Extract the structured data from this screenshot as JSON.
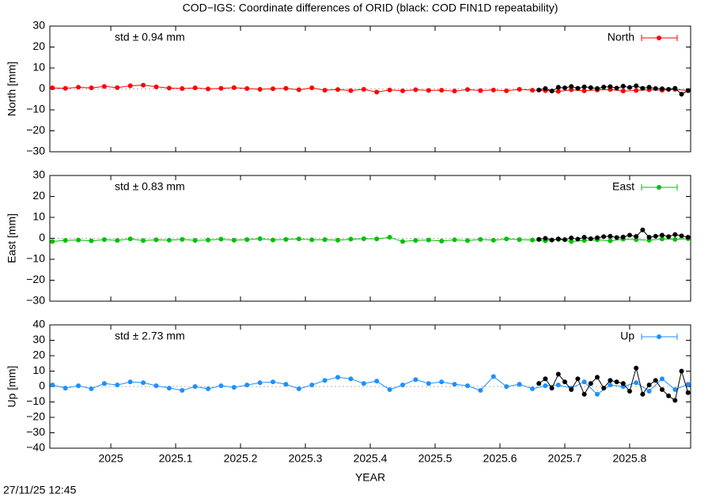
{
  "title": "COD−IGS: Coordinate differences of ORID (black: COD FIN1D repeatability)",
  "timestamp": "27/11/25 12:45",
  "chart_data": [
    {
      "type": "line",
      "ylabel": "North [mm]",
      "annotation": "std ± 0.94 mm",
      "xlim": [
        2024.906,
        2025.894
      ],
      "xticks": [
        2025,
        2025.1,
        2025.2,
        2025.3,
        2025.4,
        2025.5,
        2025.6,
        2025.7,
        2025.8
      ],
      "ylim": [
        -30,
        30
      ],
      "yticks": [
        {
          "value": -30,
          "label": "−30"
        },
        {
          "value": -20,
          "label": "−20"
        },
        {
          "value": -10,
          "label": "−10"
        },
        0,
        10,
        20,
        30
      ],
      "series": [
        {
          "name": "North",
          "color": "#ff0000",
          "x": [
            2024.91,
            2024.93,
            2024.95,
            2024.97,
            2024.99,
            2025.01,
            2025.03,
            2025.05,
            2025.07,
            2025.09,
            2025.11,
            2025.13,
            2025.15,
            2025.17,
            2025.19,
            2025.21,
            2025.23,
            2025.25,
            2025.27,
            2025.29,
            2025.31,
            2025.33,
            2025.35,
            2025.37,
            2025.39,
            2025.41,
            2025.43,
            2025.45,
            2025.47,
            2025.49,
            2025.51,
            2025.53,
            2025.55,
            2025.57,
            2025.59,
            2025.61,
            2025.63,
            2025.65,
            2025.67,
            2025.69,
            2025.71,
            2025.73,
            2025.75,
            2025.77,
            2025.79,
            2025.81,
            2025.83,
            2025.85,
            2025.87,
            2025.89
          ],
          "values": [
            0.5,
            0.3,
            0.8,
            0.5,
            1.2,
            0.6,
            1.5,
            1.8,
            1.0,
            0.4,
            0.2,
            0.5,
            0.0,
            0.3,
            0.6,
            0.2,
            -0.2,
            0.1,
            0.3,
            -0.4,
            0.5,
            -0.6,
            -0.3,
            -0.8,
            -0.2,
            -1.5,
            -0.5,
            -0.9,
            -0.4,
            -0.7,
            -0.6,
            -1.0,
            -0.3,
            -0.8,
            -0.5,
            -0.9,
            -0.2,
            -0.6,
            -0.8,
            -1.2,
            -0.4,
            -0.9,
            -0.5,
            -0.3,
            -1.0,
            -0.7,
            -0.4,
            -0.6,
            -0.2,
            -0.8
          ]
        },
        {
          "color": "#000000",
          "x": [
            2025.66,
            2025.67,
            2025.68,
            2025.69,
            2025.7,
            2025.71,
            2025.72,
            2025.73,
            2025.74,
            2025.75,
            2025.76,
            2025.77,
            2025.78,
            2025.79,
            2025.8,
            2025.81,
            2025.82,
            2025.83,
            2025.84,
            2025.85,
            2025.86,
            2025.87,
            2025.88,
            2025.89
          ],
          "values": [
            -0.5,
            0.2,
            -1.0,
            0.8,
            0.5,
            1.2,
            0.3,
            1.0,
            0.6,
            0.2,
            0.9,
            1.1,
            0.4,
            1.3,
            0.7,
            1.5,
            0.3,
            0.8,
            0.2,
            0.1,
            -0.2,
            0.3,
            -2.5,
            -0.8
          ]
        }
      ]
    },
    {
      "type": "line",
      "ylabel": "East [mm]",
      "annotation": "std ± 0.83 mm",
      "xlim": [
        2024.906,
        2025.894
      ],
      "xticks": [
        2025,
        2025.1,
        2025.2,
        2025.3,
        2025.4,
        2025.5,
        2025.6,
        2025.7,
        2025.8
      ],
      "ylim": [
        -30,
        30
      ],
      "yticks": [
        {
          "value": -30,
          "label": "−30"
        },
        {
          "value": -20,
          "label": "−20"
        },
        {
          "value": -10,
          "label": "−10"
        },
        0,
        10,
        20,
        30
      ],
      "series": [
        {
          "name": "East",
          "color": "#00c000",
          "x": [
            2024.91,
            2024.93,
            2024.95,
            2024.97,
            2024.99,
            2025.01,
            2025.03,
            2025.05,
            2025.07,
            2025.09,
            2025.11,
            2025.13,
            2025.15,
            2025.17,
            2025.19,
            2025.21,
            2025.23,
            2025.25,
            2025.27,
            2025.29,
            2025.31,
            2025.33,
            2025.35,
            2025.37,
            2025.39,
            2025.41,
            2025.43,
            2025.45,
            2025.47,
            2025.49,
            2025.51,
            2025.53,
            2025.55,
            2025.57,
            2025.59,
            2025.61,
            2025.63,
            2025.65,
            2025.67,
            2025.69,
            2025.71,
            2025.73,
            2025.75,
            2025.77,
            2025.79,
            2025.81,
            2025.83,
            2025.85,
            2025.87,
            2025.89
          ],
          "values": [
            -1.5,
            -1.0,
            -0.8,
            -1.2,
            -0.6,
            -1.0,
            -0.3,
            -1.1,
            -0.7,
            -0.9,
            -0.5,
            -1.0,
            -0.8,
            -0.4,
            -0.9,
            -0.6,
            -0.2,
            -0.8,
            -0.5,
            -0.3,
            -0.7,
            -0.6,
            -0.9,
            -0.4,
            -0.2,
            -0.3,
            0.5,
            -1.5,
            -1.0,
            -0.8,
            -1.3,
            -0.7,
            -1.1,
            -0.5,
            -0.9,
            -0.3,
            -0.6,
            -0.8,
            -1.2,
            -0.5,
            -1.5,
            -1.0,
            -0.7,
            -1.2,
            -0.4,
            -0.6,
            -0.9,
            -0.3,
            -0.5,
            -0.2
          ]
        },
        {
          "color": "#000000",
          "x": [
            2025.66,
            2025.67,
            2025.68,
            2025.69,
            2025.7,
            2025.71,
            2025.72,
            2025.73,
            2025.74,
            2025.75,
            2025.76,
            2025.77,
            2025.78,
            2025.79,
            2025.8,
            2025.81,
            2025.82,
            2025.83,
            2025.84,
            2025.85,
            2025.86,
            2025.87,
            2025.88,
            2025.89
          ],
          "values": [
            -0.5,
            0.0,
            -0.8,
            -0.3,
            -0.6,
            0.2,
            -0.4,
            0.5,
            -0.2,
            0.3,
            0.8,
            1.0,
            0.4,
            0.6,
            1.5,
            0.9,
            4.0,
            0.5,
            1.0,
            1.5,
            0.8,
            1.8,
            1.2,
            0.5
          ]
        }
      ]
    },
    {
      "type": "line",
      "ylabel": "Up [mm]",
      "annotation": "std ± 2.73 mm",
      "xlabel": "YEAR",
      "xlim": [
        2024.906,
        2025.894
      ],
      "xticks": [
        2025,
        2025.1,
        2025.2,
        2025.3,
        2025.4,
        2025.5,
        2025.6,
        2025.7,
        2025.8
      ],
      "ylim": [
        -40,
        40
      ],
      "yticks": [
        {
          "value": -40,
          "label": "−40"
        },
        {
          "value": -30,
          "label": "−30"
        },
        {
          "value": -20,
          "label": "−20"
        },
        {
          "value": -10,
          "label": "−10"
        },
        0,
        10,
        20,
        30,
        40
      ],
      "series": [
        {
          "name": "Up",
          "color": "#1e8fff",
          "x": [
            2024.91,
            2024.93,
            2024.95,
            2024.97,
            2024.99,
            2025.01,
            2025.03,
            2025.05,
            2025.07,
            2025.09,
            2025.11,
            2025.13,
            2025.15,
            2025.17,
            2025.19,
            2025.21,
            2025.23,
            2025.25,
            2025.27,
            2025.29,
            2025.31,
            2025.33,
            2025.35,
            2025.37,
            2025.39,
            2025.41,
            2025.43,
            2025.45,
            2025.47,
            2025.49,
            2025.51,
            2025.53,
            2025.55,
            2025.57,
            2025.59,
            2025.61,
            2025.63,
            2025.65,
            2025.67,
            2025.69,
            2025.71,
            2025.73,
            2025.75,
            2025.77,
            2025.79,
            2025.81,
            2025.83,
            2025.85,
            2025.87,
            2025.89
          ],
          "values": [
            1.0,
            -1.0,
            0.5,
            -1.5,
            2.0,
            1.0,
            3.0,
            2.5,
            0.5,
            -1.0,
            -2.5,
            0.0,
            -1.5,
            0.5,
            -0.5,
            1.0,
            2.5,
            3.0,
            1.5,
            -1.5,
            1.0,
            4.0,
            6.0,
            5.0,
            2.0,
            3.5,
            -2.0,
            1.0,
            4.5,
            2.0,
            3.0,
            1.5,
            0.5,
            -2.5,
            6.5,
            0.0,
            1.5,
            -1.5,
            0.5,
            1.0,
            -1.0,
            3.0,
            -5.0,
            1.0,
            0.0,
            2.5,
            -3.0,
            5.0,
            -2.0,
            1.5
          ]
        },
        {
          "color": "#000000",
          "x": [
            2025.66,
            2025.67,
            2025.68,
            2025.69,
            2025.7,
            2025.71,
            2025.72,
            2025.73,
            2025.74,
            2025.75,
            2025.76,
            2025.77,
            2025.78,
            2025.79,
            2025.8,
            2025.81,
            2025.82,
            2025.83,
            2025.84,
            2025.85,
            2025.86,
            2025.87,
            2025.88,
            2025.89
          ],
          "values": [
            2.0,
            5.0,
            -1.0,
            8.0,
            3.0,
            -2.0,
            5.0,
            -5.0,
            2.0,
            6.0,
            -1.0,
            4.0,
            3.0,
            2.0,
            -3.0,
            12.0,
            -5.0,
            1.0,
            4.0,
            -2.0,
            -6.0,
            -9.0,
            10.0,
            -4.0
          ]
        }
      ]
    }
  ]
}
